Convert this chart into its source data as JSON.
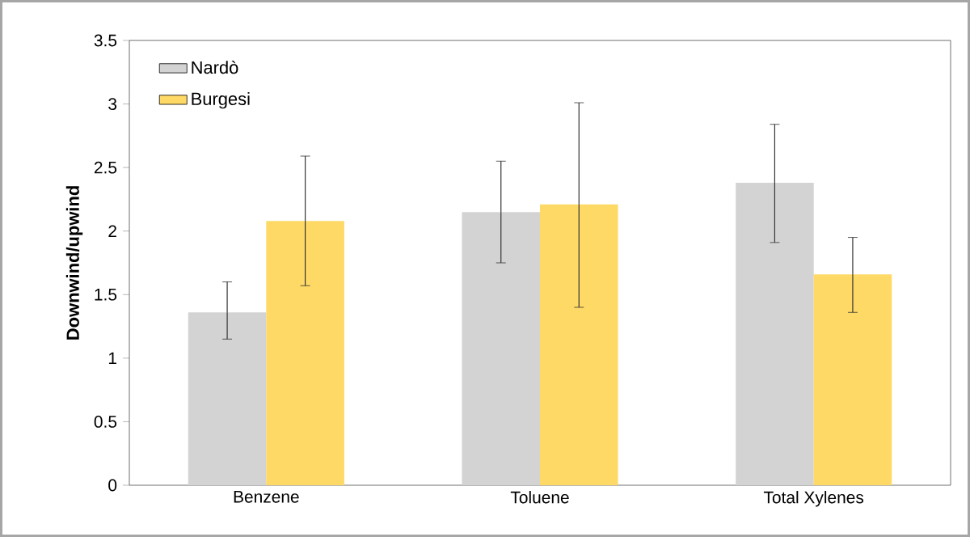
{
  "chart_data": {
    "type": "bar",
    "ylabel": "Downwind/upwind",
    "categories": [
      "Benzene",
      "Toluene",
      "Total Xylenes"
    ],
    "series": [
      {
        "name": "Nardò",
        "color": "#d3d3d3",
        "values": [
          1.36,
          2.15,
          2.38
        ],
        "errors": [
          [
            1.15,
            1.6
          ],
          [
            1.75,
            2.55
          ],
          [
            1.91,
            2.84
          ]
        ]
      },
      {
        "name": "Burgesi",
        "color": "#fed966",
        "values": [
          2.08,
          2.21,
          1.66
        ],
        "errors": [
          [
            1.57,
            2.59
          ],
          [
            1.4,
            3.01
          ],
          [
            1.36,
            1.95
          ]
        ]
      }
    ],
    "ylim": [
      0,
      3.5
    ],
    "yticks": [
      0,
      0.5,
      1,
      1.5,
      2,
      2.5,
      3,
      3.5
    ],
    "grid": false,
    "legend": "top left"
  }
}
